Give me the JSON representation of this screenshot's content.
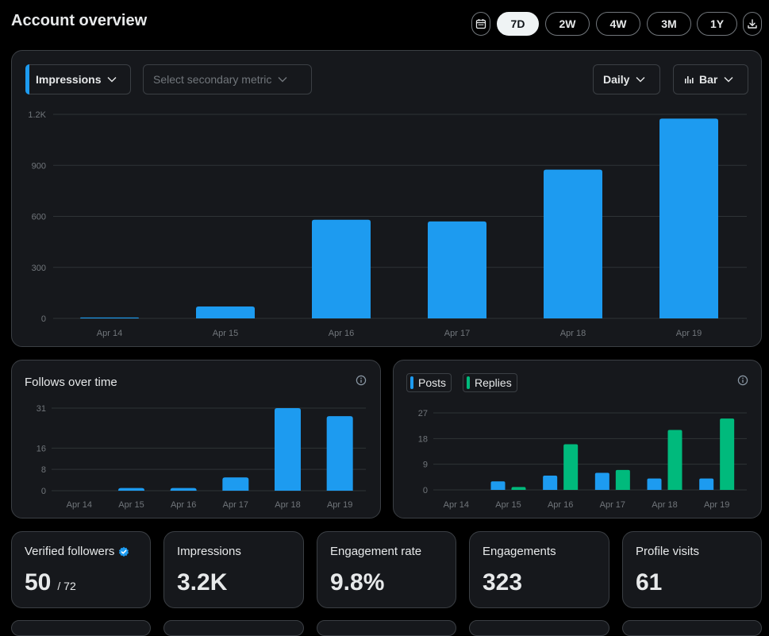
{
  "page_title": "Account overview",
  "range_options": [
    "7D",
    "2W",
    "4W",
    "3M",
    "1Y"
  ],
  "range_selected": "7D",
  "icons": {
    "calendar": "calendar-icon",
    "download": "download-icon",
    "chevron": "chevron-down-icon",
    "bar_chart": "bar-chart-icon",
    "info": "info-icon",
    "verified": "verified-badge-icon"
  },
  "colors": {
    "accent_blue": "#1d9bf0",
    "accent_green": "#00ba7c",
    "card_bg": "#16181c",
    "border": "#3b3f44"
  },
  "main_chart": {
    "primary_metric": "Impressions",
    "secondary_metric_placeholder": "Select secondary metric",
    "interval": "Daily",
    "chart_type_label": "Bar"
  },
  "follows_card": {
    "title": "Follows over time"
  },
  "posts_card": {
    "legend_posts": "Posts",
    "legend_replies": "Replies"
  },
  "stats": [
    {
      "label": "Verified followers",
      "value": "50",
      "sub": "/ 72"
    },
    {
      "label": "Impressions",
      "value": "3.2K"
    },
    {
      "label": "Engagement rate",
      "value": "9.8%"
    },
    {
      "label": "Engagements",
      "value": "323"
    },
    {
      "label": "Profile visits",
      "value": "61"
    }
  ],
  "chart_data": [
    {
      "id": "impressions",
      "type": "bar",
      "title": "Impressions",
      "categories": [
        "Apr 14",
        "Apr 15",
        "Apr 16",
        "Apr 17",
        "Apr 18",
        "Apr 19"
      ],
      "values": [
        5,
        70,
        580,
        570,
        875,
        1175
      ],
      "ylim": [
        0,
        1200
      ],
      "yticks": [
        0,
        300,
        600,
        900,
        1200
      ],
      "ytick_labels": [
        "0",
        "300",
        "600",
        "900",
        "1.2K"
      ],
      "grid": true,
      "color": "#1d9bf0"
    },
    {
      "id": "follows",
      "type": "bar",
      "title": "Follows over time",
      "categories": [
        "Apr 14",
        "Apr 15",
        "Apr 16",
        "Apr 17",
        "Apr 18",
        "Apr 19"
      ],
      "values": [
        0,
        1,
        1,
        5,
        31,
        28
      ],
      "ylim": [
        0,
        31
      ],
      "yticks": [
        0,
        8,
        16,
        31
      ],
      "ytick_labels": [
        "0",
        "8",
        "16",
        "31"
      ],
      "grid": true,
      "color": "#1d9bf0"
    },
    {
      "id": "posts_replies",
      "type": "bar",
      "categories": [
        "Apr 14",
        "Apr 15",
        "Apr 16",
        "Apr 17",
        "Apr 18",
        "Apr 19"
      ],
      "series": [
        {
          "name": "Posts",
          "values": [
            0,
            3,
            5,
            6,
            4,
            4
          ],
          "color": "#1d9bf0"
        },
        {
          "name": "Replies",
          "values": [
            0,
            1,
            16,
            7,
            21,
            25
          ],
          "color": "#00ba7c"
        }
      ],
      "ylim": [
        0,
        27
      ],
      "yticks": [
        0,
        9,
        18,
        27
      ],
      "ytick_labels": [
        "0",
        "9",
        "18",
        "27"
      ],
      "grid": true
    }
  ]
}
